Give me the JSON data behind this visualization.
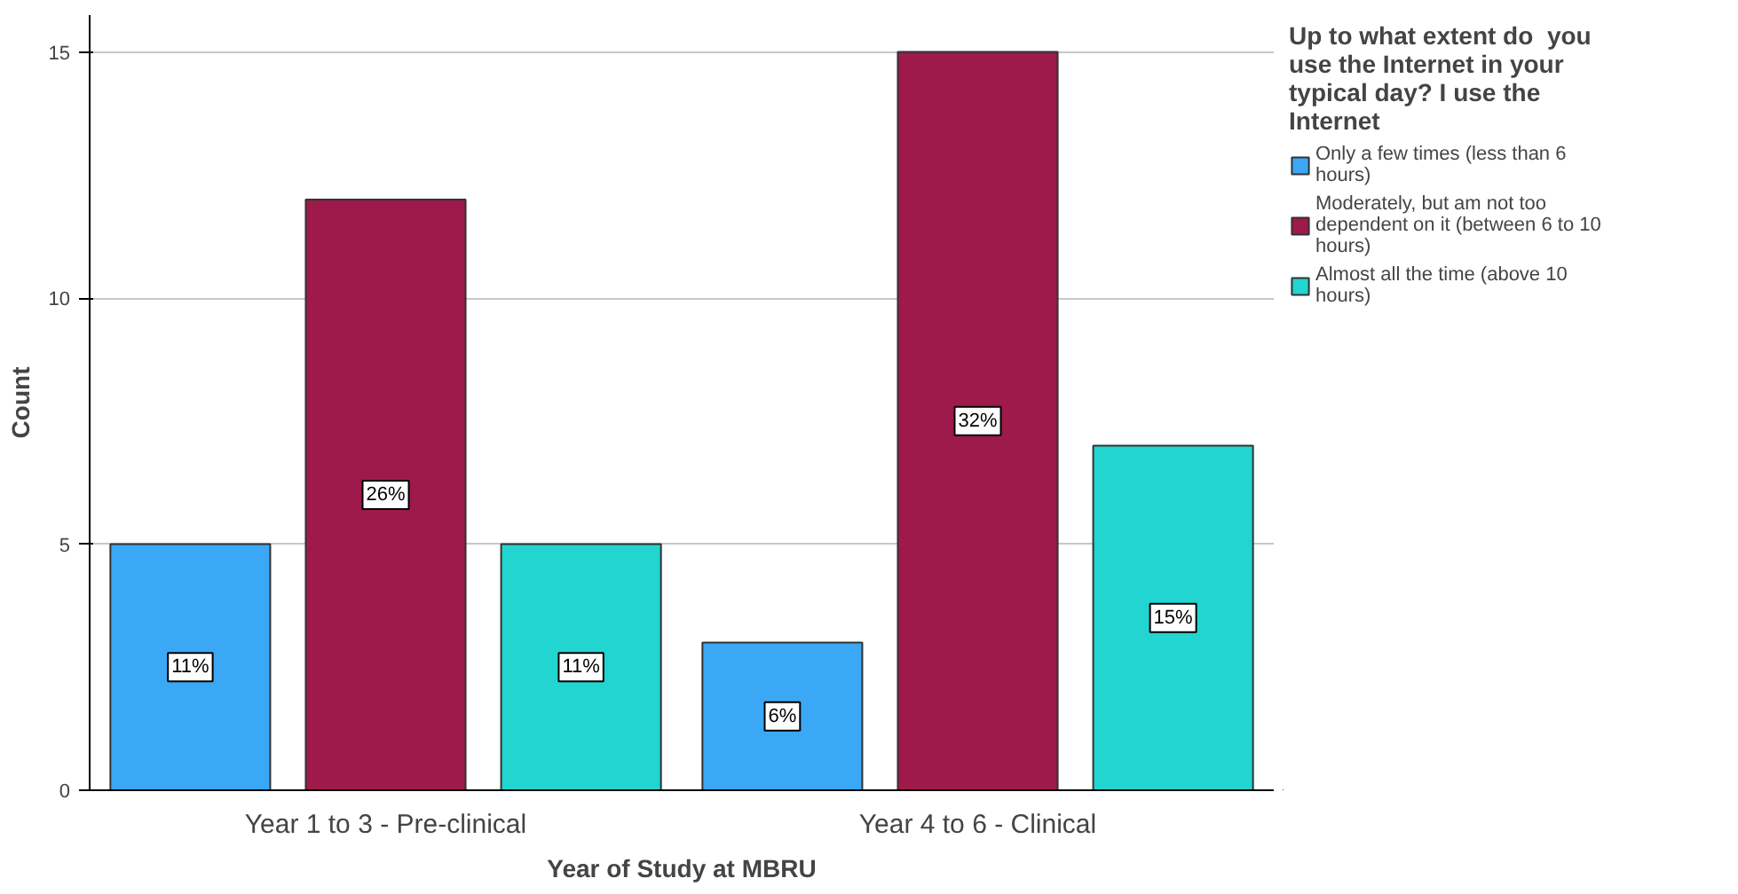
{
  "chart_data": {
    "type": "bar",
    "xlabel": "Year of Study at MBRU",
    "ylabel": "Count",
    "legend_title": "Up to what extent do  you use the Internet in your typical day? I use the Internet",
    "categories": [
      "Year 1 to 3 - Pre-clinical",
      "Year 4 to 6 - Clinical"
    ],
    "series": [
      {
        "name": "Only a few times (less than 6 hours)",
        "color": "#3aa8f5",
        "values": [
          5,
          3
        ]
      },
      {
        "name": "Moderately, but am not too dependent on it (between 6 to 10 hours)",
        "color": "#9e1a4a",
        "values": [
          12,
          15
        ]
      },
      {
        "name": "Almost all the time (above 10 hours)",
        "color": "#22d5d0",
        "values": [
          5,
          7
        ]
      }
    ],
    "annotations": [
      "11%",
      "26%",
      "11%",
      "6%",
      "32%",
      "15%"
    ],
    "ylim": [
      0,
      15.75
    ],
    "yticks": [
      0,
      5,
      10,
      15
    ],
    "grid": "y",
    "legend": "right"
  }
}
